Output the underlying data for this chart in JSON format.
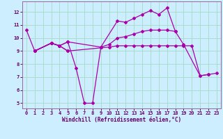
{
  "xlabel": "Windchill (Refroidissement éolien,°C)",
  "bg_color": "#cceeff",
  "grid_color": "#aaddcc",
  "line_color": "#aa00aa",
  "xlim": [
    -0.5,
    23.5
  ],
  "ylim": [
    4.6,
    12.8
  ],
  "yticks": [
    5,
    6,
    7,
    8,
    9,
    10,
    11,
    12
  ],
  "xticks": [
    0,
    1,
    2,
    3,
    4,
    5,
    6,
    7,
    8,
    9,
    10,
    11,
    12,
    13,
    14,
    15,
    16,
    17,
    18,
    19,
    20,
    21,
    22,
    23
  ],
  "series": [
    {
      "segments": [
        {
          "x": [
            0,
            1
          ],
          "y": [
            10.6,
            9.0
          ]
        },
        {
          "x": [
            1,
            3,
            4,
            5
          ],
          "y": [
            9.0,
            9.6,
            9.4,
            9.0
          ]
        },
        {
          "x": [
            9,
            11,
            12,
            13,
            14,
            15,
            16,
            17,
            18
          ],
          "y": [
            9.3,
            11.3,
            11.2,
            11.5,
            11.8,
            12.1,
            11.8,
            12.3,
            10.5
          ]
        }
      ]
    },
    {
      "segments": [
        {
          "x": [
            1,
            3,
            4,
            5,
            6,
            7,
            8,
            9
          ],
          "y": [
            9.0,
            9.6,
            9.4,
            9.7,
            7.7,
            5.0,
            5.0,
            9.3
          ]
        }
      ]
    },
    {
      "segments": [
        {
          "x": [
            1,
            3,
            4,
            5,
            9,
            10,
            11,
            12,
            13,
            14,
            15,
            16,
            17,
            18,
            19,
            21,
            22
          ],
          "y": [
            9.0,
            9.6,
            9.4,
            9.7,
            9.3,
            9.5,
            10.0,
            10.1,
            10.3,
            10.5,
            10.6,
            10.6,
            10.6,
            10.5,
            9.5,
            7.1,
            7.2
          ]
        }
      ]
    },
    {
      "segments": [
        {
          "x": [
            1,
            3,
            4,
            5,
            10,
            11,
            12,
            13,
            14,
            15,
            16,
            17,
            18,
            19,
            20,
            21,
            22,
            23
          ],
          "y": [
            9.0,
            9.6,
            9.4,
            9.0,
            9.3,
            9.4,
            9.4,
            9.4,
            9.4,
            9.4,
            9.4,
            9.4,
            9.4,
            9.4,
            9.4,
            7.1,
            7.2,
            7.3
          ]
        }
      ]
    }
  ]
}
